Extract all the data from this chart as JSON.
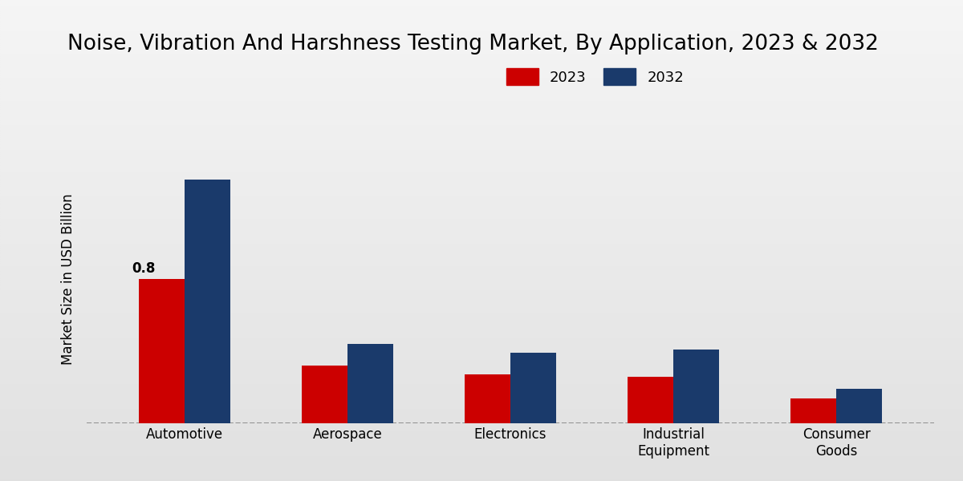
{
  "title": "Noise, Vibration And Harshness Testing Market, By Application, 2023 & 2032",
  "categories": [
    "Automotive",
    "Aerospace",
    "Electronics",
    "Industrial\nEquipment",
    "Consumer\nGoods"
  ],
  "values_2023": [
    0.8,
    0.32,
    0.27,
    0.26,
    0.14
  ],
  "values_2032": [
    1.35,
    0.44,
    0.39,
    0.41,
    0.19
  ],
  "color_2023": "#cc0000",
  "color_2032": "#1a3a6b",
  "ylabel": "Market Size in USD Billion",
  "legend_labels": [
    "2023",
    "2032"
  ],
  "annotation_value": "0.8",
  "title_fontsize": 19,
  "bar_width": 0.28,
  "ylim": [
    0,
    1.6
  ],
  "bg_top": "#e0e0e0",
  "bg_bottom": "#f5f5f5"
}
